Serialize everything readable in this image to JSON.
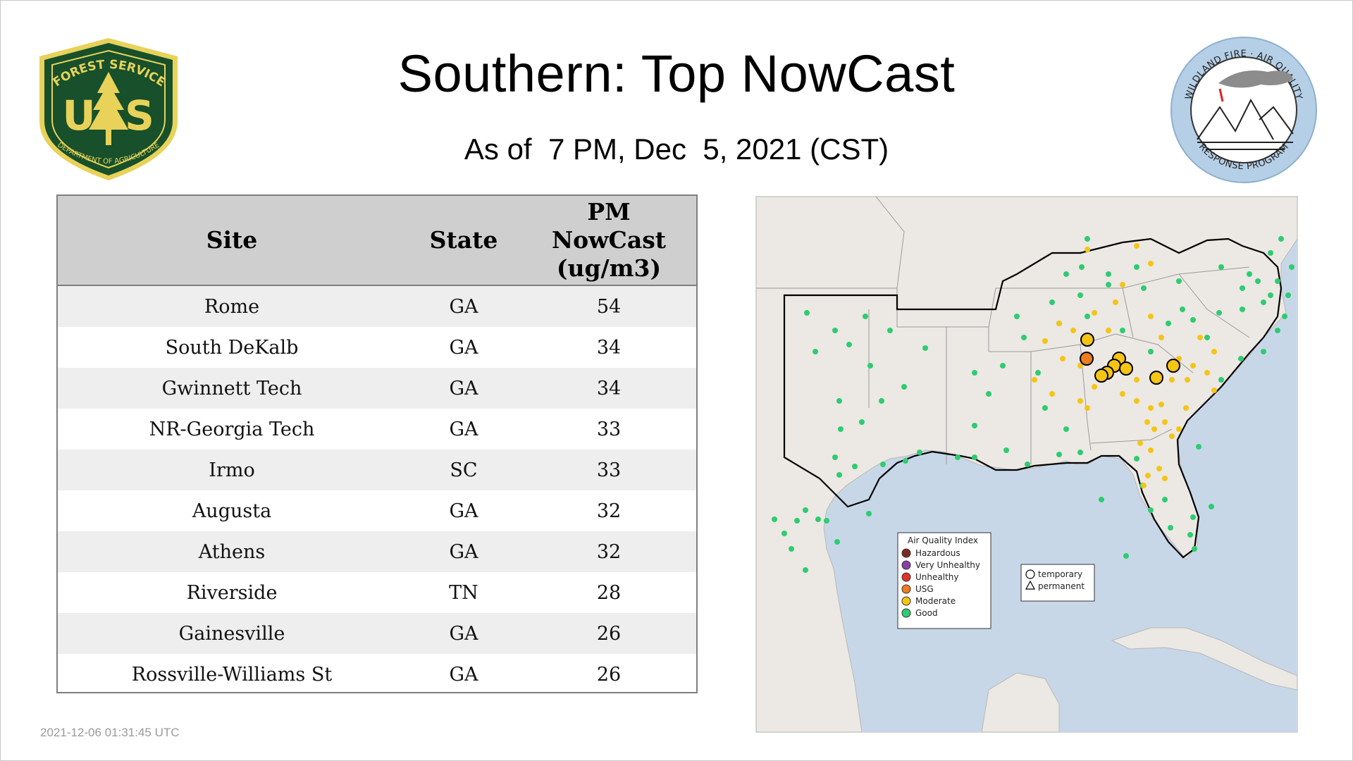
{
  "header": {
    "title": "Southern: Top NowCast",
    "subtitle": "As of  7 PM, Dec  5, 2021 (CST)"
  },
  "logos": {
    "forest_service": {
      "top_text": "FOREST SERVICE",
      "letters": "U S",
      "bottom_text": "DEPARTMENT OF AGRICULTURE",
      "colors": {
        "shield": "#17502a",
        "gold": "#e8d25a"
      }
    },
    "wildland": {
      "top_text": "WILDLAND FIRE · AIR QUALITY",
      "bottom_text": "RESPONSE PROGRAM",
      "ring_color": "#b5cfe6"
    }
  },
  "table": {
    "columns": [
      "Site",
      "State",
      "PM NowCast (ug/m3)"
    ],
    "header_lines": {
      "site": "Site",
      "state": "State",
      "pm_line1": "PM",
      "pm_line2": "NowCast",
      "pm_line3": "(ug/m3)"
    },
    "rows": [
      {
        "site": "Rome",
        "state": "GA",
        "pm": "54"
      },
      {
        "site": "South DeKalb",
        "state": "GA",
        "pm": "34"
      },
      {
        "site": "Gwinnett Tech",
        "state": "GA",
        "pm": "34"
      },
      {
        "site": "NR-Georgia Tech",
        "state": "GA",
        "pm": "33"
      },
      {
        "site": "Irmo",
        "state": "SC",
        "pm": "33"
      },
      {
        "site": "Augusta",
        "state": "GA",
        "pm": "32"
      },
      {
        "site": "Athens",
        "state": "GA",
        "pm": "32"
      },
      {
        "site": "Riverside",
        "state": "TN",
        "pm": "28"
      },
      {
        "site": "Gainesville",
        "state": "GA",
        "pm": "26"
      },
      {
        "site": "Rossville-Williams St",
        "state": "GA",
        "pm": "26"
      }
    ]
  },
  "map": {
    "legend": {
      "title": "Air Quality Index",
      "items": [
        {
          "label": "Hazardous",
          "color": "#7e2b1e"
        },
        {
          "label": "Very Unhealthy",
          "color": "#8a3fa8"
        },
        {
          "label": "Unhealthy",
          "color": "#e0312a"
        },
        {
          "label": "USG",
          "color": "#ee7d1f"
        },
        {
          "label": "Moderate",
          "color": "#f4c515"
        },
        {
          "label": "Good",
          "color": "#2ecc71"
        }
      ]
    },
    "monitor_types": [
      {
        "label": "temporary",
        "shape": "circle"
      },
      {
        "label": "permanent",
        "shape": "triangle"
      }
    ],
    "colors": {
      "water": "#c7d7e8",
      "land": "#ece8e4",
      "border": "#9a9a9a",
      "region_outline": "#000000"
    }
  },
  "footer": {
    "timestamp": "2021-12-06 01:31:45 UTC"
  }
}
